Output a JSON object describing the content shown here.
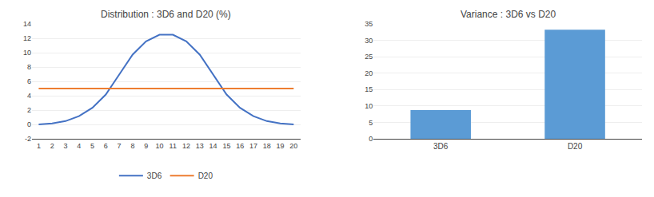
{
  "chart_data": [
    {
      "type": "line",
      "title": "Distribution : 3D6 and D20 (%)",
      "x": [
        1,
        2,
        3,
        4,
        5,
        6,
        7,
        8,
        9,
        10,
        11,
        12,
        13,
        14,
        15,
        16,
        17,
        18,
        19,
        20
      ],
      "series": [
        {
          "name": "3D6",
          "color": "#4472C4",
          "values": [
            0.0,
            0.139,
            0.463,
            1.157,
            2.315,
            4.167,
            6.944,
            9.722,
            11.574,
            12.5,
            12.5,
            11.574,
            9.722,
            6.944,
            4.167,
            2.315,
            1.157,
            0.463,
            0.139,
            0.0
          ]
        },
        {
          "name": "D20",
          "color": "#ED7D31",
          "values": [
            5.0,
            5.0,
            5.0,
            5.0,
            5.0,
            5.0,
            5.0,
            5.0,
            5.0,
            5.0,
            5.0,
            5.0,
            5.0,
            5.0,
            5.0,
            5.0,
            5.0,
            5.0,
            5.0,
            5.0
          ]
        }
      ],
      "xlim": [
        0.5,
        20.5
      ],
      "xticks": [
        1,
        2,
        3,
        4,
        5,
        6,
        7,
        8,
        9,
        10,
        11,
        12,
        13,
        14,
        15,
        16,
        17,
        18,
        19,
        20
      ],
      "ylim": [
        -2,
        14
      ],
      "yticks": [
        -2,
        0,
        2,
        4,
        6,
        8,
        10,
        12,
        14
      ],
      "grid": true,
      "legend": "bottom"
    },
    {
      "type": "bar",
      "title": "Variance : 3D6 vs D20",
      "categories": [
        "3D6",
        "D20"
      ],
      "values": [
        8.75,
        33.25
      ],
      "color": "#5B9BD5",
      "ylim": [
        0,
        35
      ],
      "yticks": [
        0,
        5,
        10,
        15,
        20,
        25,
        30,
        35
      ],
      "grid": true
    }
  ]
}
